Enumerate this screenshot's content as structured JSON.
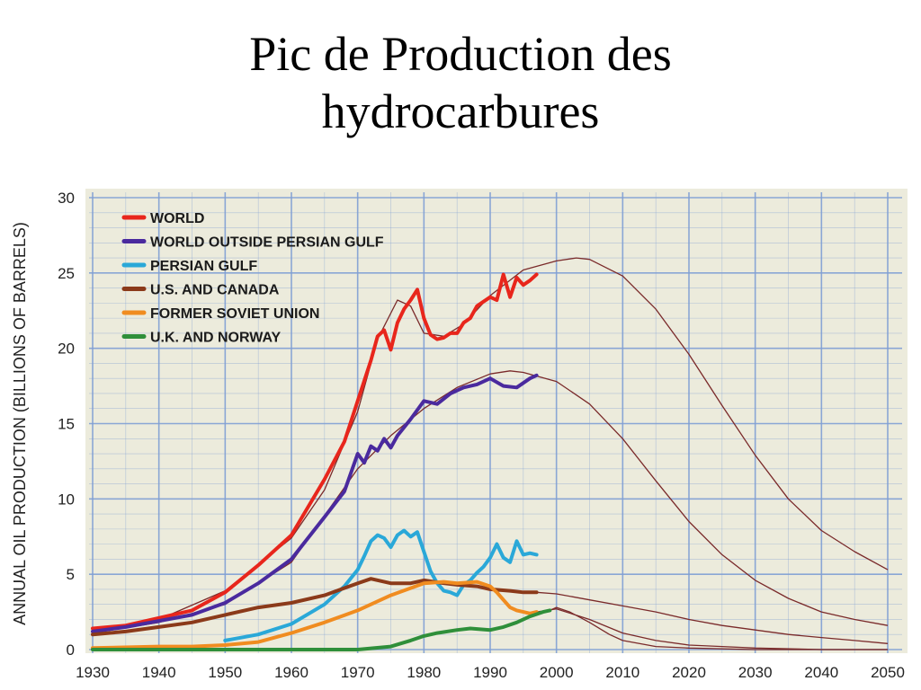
{
  "slide": {
    "title_line1": "Pic de Production des",
    "title_line2": "hydrocarbures"
  },
  "chart_data": {
    "type": "line",
    "title": "",
    "xlabel": "",
    "ylabel": "ANNUAL OIL PRODUCTION (BILLIONS OF BARRELS)",
    "xlim": [
      1930,
      2050
    ],
    "ylim": [
      0,
      30
    ],
    "xticks": [
      1930,
      1940,
      1950,
      1960,
      1970,
      1980,
      1990,
      2000,
      2010,
      2020,
      2030,
      2040,
      2050
    ],
    "yticks": [
      0,
      5,
      10,
      15,
      20,
      25,
      30
    ],
    "grid": true,
    "legend_position": "top-left",
    "colors": {
      "background": "#ecebdc",
      "grid": "#7f9fd4",
      "world": "#e8261c",
      "world_outside_persian_gulf": "#4a2a9e",
      "persian_gulf": "#2aa8d8",
      "us_canada": "#8b3a1a",
      "former_soviet_union": "#f08c20",
      "uk_norway": "#2f8f3a",
      "projection": "#7a2a2a"
    },
    "series": [
      {
        "name": "WORLD",
        "color": "#e8261c",
        "x": [
          1930,
          1935,
          1940,
          1945,
          1950,
          1955,
          1960,
          1965,
          1968,
          1970,
          1972,
          1973,
          1974,
          1975,
          1976,
          1977,
          1978,
          1979,
          1980,
          1981,
          1982,
          1983,
          1984,
          1985,
          1986,
          1987,
          1988,
          1989,
          1990,
          1991,
          1992,
          1993,
          1994,
          1995,
          1996,
          1997
        ],
        "y": [
          1.4,
          1.6,
          2.1,
          2.6,
          3.8,
          5.6,
          7.6,
          11.3,
          13.8,
          16.5,
          19.2,
          20.8,
          21.2,
          19.9,
          21.7,
          22.6,
          23.2,
          23.9,
          22.0,
          20.9,
          20.6,
          20.7,
          21.0,
          21.0,
          21.7,
          22.0,
          22.8,
          23.1,
          23.4,
          23.2,
          24.9,
          23.4,
          24.7,
          24.2,
          24.5,
          24.9
        ]
      },
      {
        "name": "WORLD OUTSIDE PERSIAN GULF",
        "color": "#4a2a9e",
        "x": [
          1930,
          1935,
          1940,
          1945,
          1950,
          1955,
          1960,
          1965,
          1968,
          1970,
          1971,
          1972,
          1973,
          1974,
          1975,
          1976,
          1978,
          1980,
          1982,
          1984,
          1986,
          1988,
          1990,
          1992,
          1994,
          1996,
          1997
        ],
        "y": [
          1.2,
          1.5,
          1.9,
          2.3,
          3.1,
          4.4,
          6.0,
          8.8,
          10.5,
          13.0,
          12.4,
          13.5,
          13.2,
          14.0,
          13.4,
          14.2,
          15.3,
          16.5,
          16.3,
          17.0,
          17.4,
          17.6,
          18.0,
          17.5,
          17.4,
          18.0,
          18.2
        ]
      },
      {
        "name": "PERSIAN GULF",
        "color": "#2aa8d8",
        "x": [
          1950,
          1955,
          1960,
          1965,
          1968,
          1970,
          1971,
          1972,
          1973,
          1974,
          1975,
          1976,
          1977,
          1978,
          1979,
          1980,
          1981,
          1982,
          1983,
          1984,
          1985,
          1986,
          1987,
          1988,
          1989,
          1990,
          1991,
          1992,
          1993,
          1994,
          1995,
          1996,
          1997
        ],
        "y": [
          0.6,
          1.0,
          1.7,
          3.0,
          4.2,
          5.3,
          6.2,
          7.2,
          7.6,
          7.4,
          6.8,
          7.6,
          7.9,
          7.5,
          7.8,
          6.5,
          5.2,
          4.4,
          3.9,
          3.8,
          3.6,
          4.3,
          4.6,
          5.1,
          5.5,
          6.1,
          7.0,
          6.1,
          5.8,
          7.2,
          6.3,
          6.4,
          6.3
        ]
      },
      {
        "name": "U.S. AND CANADA",
        "color": "#8b3a1a",
        "x": [
          1930,
          1935,
          1940,
          1945,
          1950,
          1955,
          1960,
          1965,
          1970,
          1972,
          1975,
          1978,
          1980,
          1983,
          1985,
          1988,
          1990,
          1993,
          1995,
          1997
        ],
        "y": [
          1.0,
          1.2,
          1.5,
          1.8,
          2.3,
          2.8,
          3.1,
          3.6,
          4.4,
          4.7,
          4.4,
          4.4,
          4.6,
          4.4,
          4.3,
          4.2,
          4.0,
          3.9,
          3.8,
          3.8
        ]
      },
      {
        "name": "FORMER SOVIET UNION",
        "color": "#f08c20",
        "x": [
          1930,
          1940,
          1945,
          1950,
          1955,
          1960,
          1965,
          1970,
          1975,
          1980,
          1983,
          1985,
          1988,
          1990,
          1991,
          1992,
          1993,
          1994,
          1995,
          1996,
          1997
        ],
        "y": [
          0.1,
          0.2,
          0.2,
          0.3,
          0.5,
          1.1,
          1.8,
          2.6,
          3.6,
          4.4,
          4.5,
          4.4,
          4.5,
          4.2,
          3.8,
          3.3,
          2.8,
          2.6,
          2.5,
          2.4,
          2.5
        ]
      },
      {
        "name": "U.K. AND NORWAY",
        "color": "#2f8f3a",
        "x": [
          1930,
          1940,
          1950,
          1960,
          1970,
          1975,
          1978,
          1980,
          1982,
          1985,
          1987,
          1990,
          1992,
          1994,
          1996,
          1998,
          1999
        ],
        "y": [
          0.0,
          0.0,
          0.0,
          0.0,
          0.0,
          0.2,
          0.6,
          0.9,
          1.1,
          1.3,
          1.4,
          1.3,
          1.5,
          1.8,
          2.2,
          2.5,
          2.6
        ]
      }
    ],
    "projections": [
      {
        "of": "WORLD",
        "x": [
          1930,
          1940,
          1950,
          1960,
          1965,
          1970,
          1973,
          1976,
          1978,
          1980,
          1983,
          1986,
          1990,
          1995,
          2000,
          2003,
          2005,
          2010,
          2015,
          2020,
          2025,
          2030,
          2035,
          2040,
          2045,
          2050
        ],
        "y": [
          1.3,
          2.0,
          3.9,
          7.4,
          10.6,
          15.8,
          20.6,
          23.2,
          22.8,
          21.0,
          20.8,
          21.6,
          23.5,
          25.2,
          25.8,
          26.0,
          25.9,
          24.8,
          22.6,
          19.6,
          16.2,
          12.9,
          10.0,
          7.9,
          6.5,
          5.3
        ]
      },
      {
        "of": "WORLD OUTSIDE PERSIAN GULF",
        "x": [
          1930,
          1940,
          1950,
          1960,
          1970,
          1975,
          1980,
          1985,
          1990,
          1993,
          1995,
          2000,
          2005,
          2010,
          2015,
          2020,
          2025,
          2030,
          2035,
          2040,
          2045,
          2050
        ],
        "y": [
          1.1,
          1.8,
          3.0,
          5.8,
          12.0,
          14.2,
          16.0,
          17.4,
          18.3,
          18.5,
          18.4,
          17.8,
          16.3,
          14.0,
          11.2,
          8.5,
          6.3,
          4.6,
          3.4,
          2.5,
          2.0,
          1.6
        ]
      },
      {
        "of": "U.S. AND CANADA",
        "x": [
          1997,
          2000,
          2005,
          2010,
          2015,
          2020,
          2025,
          2030,
          2035,
          2040,
          2045,
          2050
        ],
        "y": [
          3.8,
          3.7,
          3.3,
          2.9,
          2.5,
          2.0,
          1.6,
          1.3,
          1.0,
          0.8,
          0.6,
          0.4
        ]
      },
      {
        "of": "FORMER SOVIET UNION",
        "x": [
          1997,
          2000,
          2005,
          2010,
          2015,
          2020,
          2025,
          2030,
          2040,
          2050
        ],
        "y": [
          2.5,
          2.7,
          2.0,
          1.1,
          0.6,
          0.3,
          0.2,
          0.1,
          0.0,
          0.0
        ]
      },
      {
        "of": "U.K. AND NORWAY",
        "x": [
          1999,
          2000,
          2002,
          2005,
          2008,
          2010,
          2015,
          2020,
          2030,
          2040,
          2050
        ],
        "y": [
          2.6,
          2.8,
          2.5,
          1.8,
          1.0,
          0.6,
          0.2,
          0.1,
          0.0,
          0.0,
          0.0
        ]
      }
    ]
  }
}
